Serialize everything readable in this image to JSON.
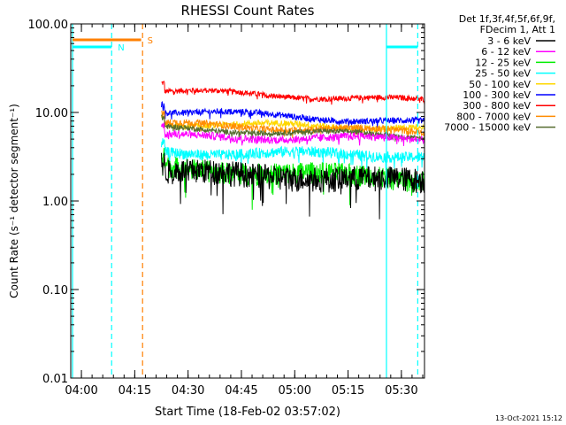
{
  "chart_data": {
    "type": "line",
    "title": "RHESSI Count Rates",
    "xlabel": "Start Time (18-Feb-02 03:57:02)",
    "ylabel": "Count Rate (s⁻¹ detector segment⁻¹)",
    "y_scale": "log",
    "ylim": [
      0.01,
      100
    ],
    "xlim_minutes_of_day": [
      237,
      336.5
    ],
    "y_ticks": [
      {
        "v": 100,
        "label": "100.00"
      },
      {
        "v": 10,
        "label": "10.00"
      },
      {
        "v": 1,
        "label": "1.00"
      },
      {
        "v": 0.1,
        "label": "0.10"
      },
      {
        "v": 0.01,
        "label": "0.01"
      }
    ],
    "x_ticks": [
      {
        "m": 240,
        "label": "04:00"
      },
      {
        "m": 255,
        "label": "04:15"
      },
      {
        "m": 270,
        "label": "04:30"
      },
      {
        "m": 285,
        "label": "04:45"
      },
      {
        "m": 300,
        "label": "05:00"
      },
      {
        "m": 315,
        "label": "05:15"
      },
      {
        "m": 330,
        "label": "05:30"
      }
    ],
    "legend_header": [
      "Det 1f,3f,4f,5f,6f,9f,",
      "FDecim 1, Att 1"
    ],
    "data_start_minute": 262.5,
    "data_end_minute": 336.5,
    "series": [
      {
        "name": "3 - 6 keV",
        "color": "#000000",
        "level_start": 2.2,
        "level_end": 1.7,
        "jitter": 0.32
      },
      {
        "name": "6 - 12 keV",
        "color": "#ff00ff",
        "level_start": 5.4,
        "level_end": 5.0,
        "jitter": 0.1
      },
      {
        "name": "12 - 25 keV",
        "color": "#00ee00",
        "level_start": 2.4,
        "level_end": 1.8,
        "jitter": 0.28
      },
      {
        "name": "25 - 50 keV",
        "color": "#00ffff",
        "level_start": 3.6,
        "level_end": 3.3,
        "jitter": 0.14
      },
      {
        "name": "50 - 100 keV",
        "color": "#ffd700",
        "level_start": 7.5,
        "level_end": 6.8,
        "jitter": 0.08
      },
      {
        "name": "100 - 300 keV",
        "color": "#0000ff",
        "level_start": 10.5,
        "level_end": 7.6,
        "jitter": 0.08
      },
      {
        "name": "300 - 800 keV",
        "color": "#ff0000",
        "level_start": 17.5,
        "level_end": 13.5,
        "jitter": 0.07
      },
      {
        "name": "800 - 7000 keV",
        "color": "#ff8c00",
        "level_start": 7.4,
        "level_end": 6.0,
        "jitter": 0.09
      },
      {
        "name": "7000 - 15000 keV",
        "color": "#556b2f",
        "level_start": 6.6,
        "level_end": 5.4,
        "jitter": 0.07
      }
    ],
    "attenuator_markers": [
      {
        "label": "N",
        "color": "#00ffff",
        "y": 55,
        "start_minute": 237.5,
        "end_minute": 248.5
      },
      {
        "label": "S",
        "color": "#ff8000",
        "y": 66,
        "start_minute": 237.5,
        "end_minute": 256.8
      },
      {
        "label": "",
        "color": "#00ffff",
        "y": 55,
        "start_minute": 325.8,
        "end_minute": 334.6
      }
    ],
    "vlines": [
      {
        "m": 237.5,
        "color": "#00ffff",
        "dashed": false
      },
      {
        "m": 248.5,
        "color": "#00ffff",
        "dashed": true
      },
      {
        "m": 257.2,
        "color": "#ff8000",
        "dashed": true
      },
      {
        "m": 325.8,
        "color": "#00ffff",
        "dashed": false
      },
      {
        "m": 334.6,
        "color": "#00ffff",
        "dashed": true
      }
    ],
    "timestamp": "13-Oct-2021 15:12"
  }
}
